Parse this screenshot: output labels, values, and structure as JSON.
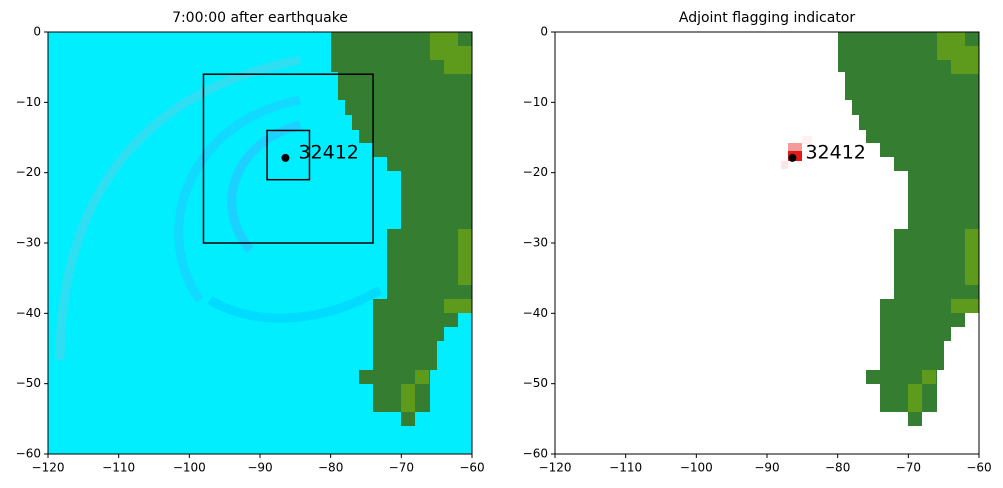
{
  "chart_data": [
    {
      "type": "map",
      "title": "7:00:00 after earthquake",
      "background": "#00eeff",
      "xlim": [
        -120,
        -60
      ],
      "ylim": [
        -60,
        0
      ],
      "xticks": [
        {
          "value": -120,
          "label": "−120"
        },
        {
          "value": -110,
          "label": "−110"
        },
        {
          "value": -100,
          "label": "−100"
        },
        {
          "value": -90,
          "label": "−90"
        },
        {
          "value": -80,
          "label": "−80"
        },
        {
          "value": -70,
          "label": "−70"
        },
        {
          "value": -60,
          "label": "−60"
        }
      ],
      "yticks": [
        0,
        {
          "value": -10,
          "label": "−10"
        },
        {
          "value": -20,
          "label": "−20"
        },
        {
          "value": -30,
          "label": "−30"
        },
        {
          "value": -40,
          "label": "−40"
        },
        {
          "value": -50,
          "label": "−50"
        },
        {
          "value": -60,
          "label": "−60"
        }
      ],
      "regions": [
        {
          "x": [
            -98,
            -74
          ],
          "y": [
            -30,
            -6
          ]
        },
        {
          "x": [
            -89,
            -83
          ],
          "y": [
            -21,
            -14
          ]
        }
      ],
      "gauge": {
        "label": "32412",
        "x": -86.4,
        "y": -17.9
      }
    },
    {
      "type": "map",
      "title": "Adjoint flagging indicator",
      "background": "#ffffff",
      "xlim": [
        -120,
        -60
      ],
      "ylim": [
        -60,
        0
      ],
      "xticks": [
        {
          "value": -120,
          "label": "−120"
        },
        {
          "value": -110,
          "label": "−110"
        },
        {
          "value": -100,
          "label": "−100"
        },
        {
          "value": -90,
          "label": "−90"
        },
        {
          "value": -80,
          "label": "−80"
        },
        {
          "value": -70,
          "label": "−70"
        },
        {
          "value": -60,
          "label": "−60"
        }
      ],
      "yticks": [
        0,
        {
          "value": -10,
          "label": "−10"
        },
        {
          "value": -20,
          "label": "−20"
        },
        {
          "value": -30,
          "label": "−30"
        },
        {
          "value": -40,
          "label": "−40"
        },
        {
          "value": -50,
          "label": "−50"
        },
        {
          "value": -60,
          "label": "−60"
        }
      ],
      "regions": [],
      "gauge": {
        "label": "32412",
        "x": -86.4,
        "y": -17.9
      }
    }
  ]
}
